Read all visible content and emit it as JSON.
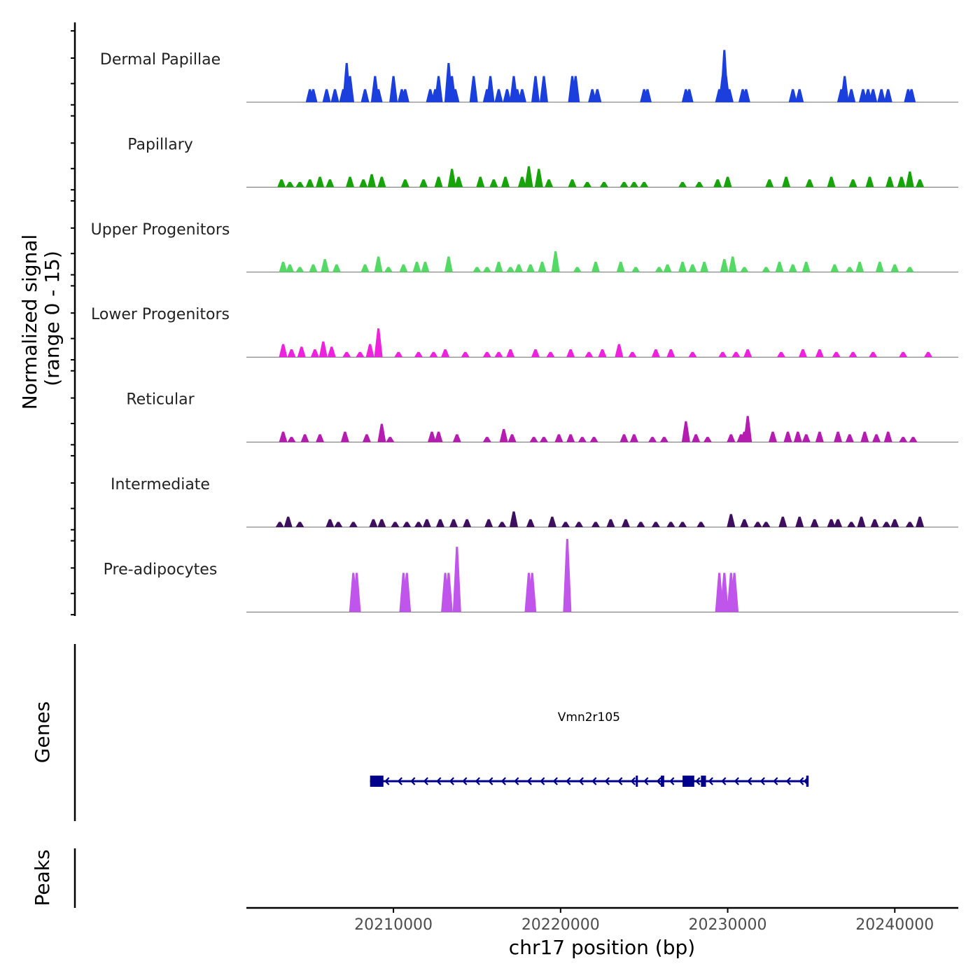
{
  "chart_data": {
    "type": "area",
    "title": "",
    "xlabel": "chr17 position (bp)",
    "ylabel_line1": "Normalized signal",
    "ylabel_line2": "(range 0 - 15)",
    "ylim": [
      0,
      15
    ],
    "xlim": [
      20201200,
      20243800
    ],
    "x_ticks": [
      20210000,
      20220000,
      20230000,
      20240000
    ],
    "x_tick_labels": [
      "20210000",
      "20220000",
      "20230000",
      "20240000"
    ],
    "series": [
      {
        "name": "Dermal Papillae",
        "color": "#1a3fdd",
        "points": [
          [
            20205000,
            2.5
          ],
          [
            20205200,
            2.5
          ],
          [
            20206000,
            2.5
          ],
          [
            20206500,
            2.5
          ],
          [
            20207000,
            2.5
          ],
          [
            20207200,
            7.5
          ],
          [
            20207400,
            5
          ],
          [
            20208300,
            2.5
          ],
          [
            20208900,
            5
          ],
          [
            20209100,
            2.5
          ],
          [
            20210000,
            5
          ],
          [
            20210500,
            2.5
          ],
          [
            20210700,
            2.5
          ],
          [
            20212200,
            2.5
          ],
          [
            20212500,
            2.5
          ],
          [
            20212700,
            5
          ],
          [
            20213300,
            7.5
          ],
          [
            20213500,
            5
          ],
          [
            20213700,
            2.5
          ],
          [
            20214800,
            5
          ],
          [
            20215600,
            2.5
          ],
          [
            20215800,
            5
          ],
          [
            20216300,
            2.5
          ],
          [
            20216800,
            2.5
          ],
          [
            20217200,
            5
          ],
          [
            20217400,
            2.5
          ],
          [
            20217700,
            2.5
          ],
          [
            20218500,
            5
          ],
          [
            20219000,
            5
          ],
          [
            20220700,
            5
          ],
          [
            20220900,
            5
          ],
          [
            20221900,
            2.5
          ],
          [
            20222200,
            2.5
          ],
          [
            20225000,
            2.5
          ],
          [
            20225200,
            2.5
          ],
          [
            20227500,
            2.5
          ],
          [
            20227700,
            2.5
          ],
          [
            20229500,
            2.5
          ],
          [
            20229700,
            5
          ],
          [
            20229800,
            10
          ],
          [
            20229900,
            5
          ],
          [
            20230100,
            2.5
          ],
          [
            20230900,
            2.5
          ],
          [
            20231100,
            2.5
          ],
          [
            20233900,
            2.5
          ],
          [
            20234300,
            2.5
          ],
          [
            20236800,
            2.5
          ],
          [
            20237000,
            5
          ],
          [
            20237400,
            2.5
          ],
          [
            20238100,
            2.5
          ],
          [
            20238400,
            2.5
          ],
          [
            20238700,
            2.5
          ],
          [
            20239200,
            2.5
          ],
          [
            20239600,
            2.5
          ],
          [
            20240800,
            2.5
          ],
          [
            20241000,
            2.5
          ]
        ]
      },
      {
        "name": "Papillary",
        "color": "#17a30a",
        "points": [
          [
            20203300,
            1.5
          ],
          [
            20203800,
            1
          ],
          [
            20204400,
            1
          ],
          [
            20205000,
            1.5
          ],
          [
            20205600,
            2
          ],
          [
            20206200,
            1.5
          ],
          [
            20207400,
            2
          ],
          [
            20208200,
            1.5
          ],
          [
            20208700,
            2.5
          ],
          [
            20209300,
            2
          ],
          [
            20210700,
            1.5
          ],
          [
            20211800,
            1.5
          ],
          [
            20212700,
            2
          ],
          [
            20213500,
            3.5
          ],
          [
            20213900,
            2
          ],
          [
            20215200,
            2
          ],
          [
            20216000,
            1.5
          ],
          [
            20216700,
            2
          ],
          [
            20217700,
            2
          ],
          [
            20218100,
            4
          ],
          [
            20218700,
            3.5
          ],
          [
            20219300,
            1.5
          ],
          [
            20220700,
            1.5
          ],
          [
            20221600,
            1
          ],
          [
            20222600,
            1
          ],
          [
            20223800,
            1
          ],
          [
            20224400,
            1
          ],
          [
            20225000,
            1
          ],
          [
            20227300,
            1
          ],
          [
            20228300,
            1
          ],
          [
            20229400,
            1.5
          ],
          [
            20230000,
            2
          ],
          [
            20232500,
            1.5
          ],
          [
            20233500,
            2
          ],
          [
            20234900,
            1.5
          ],
          [
            20236200,
            2
          ],
          [
            20237500,
            1.5
          ],
          [
            20238500,
            2
          ],
          [
            20239700,
            2
          ],
          [
            20240400,
            2
          ],
          [
            20240900,
            3
          ],
          [
            20241500,
            1.5
          ]
        ]
      },
      {
        "name": "Upper Progenitors",
        "color": "#55d966",
        "points": [
          [
            20203400,
            2
          ],
          [
            20203800,
            1.5
          ],
          [
            20204400,
            1
          ],
          [
            20205200,
            1.5
          ],
          [
            20205900,
            2.5
          ],
          [
            20206600,
            1.5
          ],
          [
            20208300,
            1.5
          ],
          [
            20209100,
            3
          ],
          [
            20209700,
            1
          ],
          [
            20210600,
            1.5
          ],
          [
            20211400,
            2
          ],
          [
            20211900,
            2
          ],
          [
            20213300,
            3
          ],
          [
            20215000,
            1
          ],
          [
            20215600,
            1
          ],
          [
            20216300,
            2
          ],
          [
            20217000,
            1
          ],
          [
            20217500,
            1.5
          ],
          [
            20218200,
            1.5
          ],
          [
            20218900,
            2
          ],
          [
            20219700,
            4
          ],
          [
            20221000,
            1
          ],
          [
            20222100,
            2
          ],
          [
            20223600,
            2
          ],
          [
            20224500,
            1
          ],
          [
            20225900,
            1
          ],
          [
            20226400,
            1.5
          ],
          [
            20227300,
            2
          ],
          [
            20227900,
            1.5
          ],
          [
            20228600,
            2
          ],
          [
            20229800,
            2.5
          ],
          [
            20230300,
            3
          ],
          [
            20231000,
            1
          ],
          [
            20232300,
            1
          ],
          [
            20233100,
            2
          ],
          [
            20233900,
            1.5
          ],
          [
            20234700,
            2
          ],
          [
            20236400,
            1.5
          ],
          [
            20237300,
            1
          ],
          [
            20237900,
            2
          ],
          [
            20239100,
            2
          ],
          [
            20240000,
            1.5
          ],
          [
            20240900,
            1
          ]
        ]
      },
      {
        "name": "Lower Progenitors",
        "color": "#ee22dd",
        "points": [
          [
            20203400,
            2.5
          ],
          [
            20203900,
            1.5
          ],
          [
            20204500,
            2
          ],
          [
            20205300,
            1.5
          ],
          [
            20205800,
            3
          ],
          [
            20206300,
            2
          ],
          [
            20207200,
            1
          ],
          [
            20208000,
            1
          ],
          [
            20208600,
            2.5
          ],
          [
            20209100,
            5.5
          ],
          [
            20210300,
            1
          ],
          [
            20211500,
            1
          ],
          [
            20212400,
            1
          ],
          [
            20213100,
            1.5
          ],
          [
            20214300,
            1
          ],
          [
            20215600,
            1
          ],
          [
            20216300,
            1
          ],
          [
            20217000,
            1.5
          ],
          [
            20218500,
            1.5
          ],
          [
            20219400,
            1
          ],
          [
            20220600,
            1.5
          ],
          [
            20221700,
            1
          ],
          [
            20222500,
            1.5
          ],
          [
            20223500,
            2.5
          ],
          [
            20224300,
            1
          ],
          [
            20225700,
            1.5
          ],
          [
            20226600,
            1.5
          ],
          [
            20227900,
            1
          ],
          [
            20229700,
            1
          ],
          [
            20230500,
            1
          ],
          [
            20231200,
            1.5
          ],
          [
            20233200,
            1
          ],
          [
            20234500,
            1.5
          ],
          [
            20235500,
            1.5
          ],
          [
            20236500,
            1
          ],
          [
            20237500,
            1
          ],
          [
            20238700,
            1
          ],
          [
            20240500,
            1
          ],
          [
            20242000,
            1
          ]
        ]
      },
      {
        "name": "Reticular",
        "color": "#b51cb0",
        "points": [
          [
            20203400,
            2
          ],
          [
            20203900,
            1
          ],
          [
            20204700,
            1.5
          ],
          [
            20205600,
            1.5
          ],
          [
            20207100,
            2
          ],
          [
            20208400,
            1.5
          ],
          [
            20209300,
            3.5
          ],
          [
            20209800,
            1
          ],
          [
            20212300,
            2
          ],
          [
            20212700,
            2
          ],
          [
            20213800,
            1.5
          ],
          [
            20215600,
            1
          ],
          [
            20216600,
            2.5
          ],
          [
            20217100,
            1.5
          ],
          [
            20218400,
            1
          ],
          [
            20219000,
            1
          ],
          [
            20219900,
            1.5
          ],
          [
            20220600,
            1.5
          ],
          [
            20221300,
            1
          ],
          [
            20222000,
            1
          ],
          [
            20223800,
            1.5
          ],
          [
            20224400,
            1.5
          ],
          [
            20225500,
            1
          ],
          [
            20226200,
            1
          ],
          [
            20227500,
            4
          ],
          [
            20228100,
            1.5
          ],
          [
            20228800,
            1
          ],
          [
            20230200,
            1.5
          ],
          [
            20230800,
            1.5
          ],
          [
            20231000,
            2
          ],
          [
            20231200,
            5
          ],
          [
            20232700,
            2
          ],
          [
            20233600,
            2
          ],
          [
            20234200,
            2
          ],
          [
            20234700,
            1.5
          ],
          [
            20235500,
            2
          ],
          [
            20236600,
            2
          ],
          [
            20237300,
            1.5
          ],
          [
            20238200,
            2
          ],
          [
            20238900,
            1.5
          ],
          [
            20239600,
            2
          ],
          [
            20240500,
            1
          ],
          [
            20241100,
            1
          ]
        ]
      },
      {
        "name": "Intermediate",
        "color": "#3f0f5f",
        "points": [
          [
            20203200,
            1
          ],
          [
            20203700,
            2
          ],
          [
            20204400,
            1
          ],
          [
            20206200,
            1.5
          ],
          [
            20206700,
            1
          ],
          [
            20207600,
            1
          ],
          [
            20208800,
            1.5
          ],
          [
            20209300,
            1.5
          ],
          [
            20210100,
            1
          ],
          [
            20210800,
            1
          ],
          [
            20211500,
            1
          ],
          [
            20212000,
            1.5
          ],
          [
            20212800,
            1.5
          ],
          [
            20213600,
            1.5
          ],
          [
            20214400,
            1.5
          ],
          [
            20215700,
            1.5
          ],
          [
            20216500,
            1
          ],
          [
            20217200,
            3
          ],
          [
            20218200,
            1.5
          ],
          [
            20219500,
            2
          ],
          [
            20220300,
            1
          ],
          [
            20221100,
            1
          ],
          [
            20222100,
            1
          ],
          [
            20223000,
            1.5
          ],
          [
            20223900,
            1.5
          ],
          [
            20224800,
            1
          ],
          [
            20225700,
            1
          ],
          [
            20226600,
            1
          ],
          [
            20227300,
            1
          ],
          [
            20228400,
            1
          ],
          [
            20230200,
            2.5
          ],
          [
            20231000,
            1.5
          ],
          [
            20231800,
            1
          ],
          [
            20232300,
            1
          ],
          [
            20233300,
            2
          ],
          [
            20234300,
            2
          ],
          [
            20235200,
            1.5
          ],
          [
            20236200,
            1.5
          ],
          [
            20236600,
            1.5
          ],
          [
            20237400,
            1
          ],
          [
            20238000,
            2
          ],
          [
            20238800,
            1.5
          ],
          [
            20239500,
            1
          ],
          [
            20240000,
            1.5
          ],
          [
            20240900,
            1
          ],
          [
            20241500,
            2
          ]
        ]
      },
      {
        "name": "Pre-adipocytes",
        "color": "#c055ec",
        "points": [
          [
            20207600,
            7.5
          ],
          [
            20207800,
            7.5
          ],
          [
            20210600,
            7.5
          ],
          [
            20210800,
            7.5
          ],
          [
            20213100,
            7.5
          ],
          [
            20213300,
            7.5
          ],
          [
            20213800,
            12.5
          ],
          [
            20218100,
            7.5
          ],
          [
            20218300,
            7.5
          ],
          [
            20220400,
            14
          ],
          [
            20229500,
            7.5
          ],
          [
            20229800,
            7.5
          ],
          [
            20230200,
            7.5
          ],
          [
            20230400,
            7.5
          ]
        ]
      }
    ],
    "genes_track_label": "Genes",
    "peaks_track_label": "Peaks",
    "genes": [
      {
        "name": "Vmn2r105",
        "start": 20208600,
        "end": 20234800,
        "strand": "-",
        "color": "#00008b",
        "exons": [
          [
            20208600,
            20209400
          ],
          [
            20224500,
            20224600
          ],
          [
            20226000,
            20226200
          ],
          [
            20227300,
            20228000
          ],
          [
            20228400,
            20228700
          ],
          [
            20234700,
            20234800
          ]
        ]
      }
    ]
  }
}
